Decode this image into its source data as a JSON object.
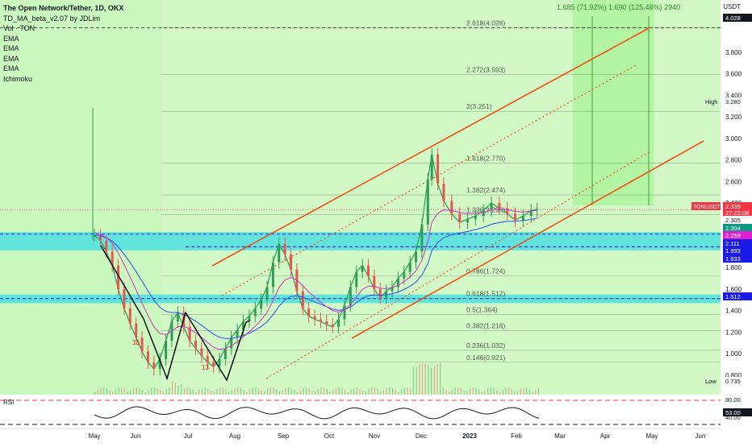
{
  "header": {
    "title": "The Open Network/Tether, 1D, OKX",
    "indicators": [
      "TD_MA_beta_v2.07 by JDLim",
      "Vol · TON",
      "EMA",
      "EMA",
      "EMA",
      "EMA",
      "Ichimoku"
    ],
    "currency": "USDT"
  },
  "colors": {
    "bg_green": "#b9f5a8",
    "candle_up": "#2e9e57",
    "candle_down": "#ef5350",
    "channel": "#f2501a",
    "ema_blue": "#2b50f2",
    "ema_purple": "#d433c8",
    "zone": "#4fe0e0",
    "label_red": "#f23645",
    "label_green": "#089981",
    "label_blue": "#1a1ae6",
    "label_magenta": "#e020d0"
  },
  "chart_data": {
    "type": "line",
    "title": "The Open Network/Tether, 1D, OKX",
    "xlabel": "",
    "ylabel": "USDT",
    "ylim": [
      0.62,
      4.15
    ],
    "x_ticks": [
      "May",
      "Jun",
      "Jul",
      "Aug",
      "Sep",
      "Oct",
      "Nov",
      "Dec",
      "2023",
      "Feb",
      "Mar",
      "Apr",
      "May",
      "Jun"
    ],
    "y_ticks": [
      "4.028",
      "3.800",
      "3.600",
      "3.400",
      "3.200",
      "3.000",
      "2.800",
      "2.600",
      "2.400",
      "2.200",
      "1.800",
      "1.600",
      "1.400",
      "1.200",
      "1.000",
      "0.800"
    ],
    "price_labels": [
      {
        "text": "4.028",
        "kind": "dark"
      },
      {
        "text": "3.280",
        "kind": "white",
        "tag": "High"
      },
      {
        "text": "TONUSDT",
        "kind": "red",
        "tag": ""
      },
      {
        "text": "2.339",
        "kind": "red"
      },
      {
        "text": "27:22:08",
        "kind": "red"
      },
      {
        "text": "2.305",
        "kind": "white"
      },
      {
        "text": "2.304",
        "kind": "green"
      },
      {
        "text": "2.259",
        "kind": "magenta"
      },
      {
        "text": "2.111",
        "kind": "blue"
      },
      {
        "text": "1.993",
        "kind": "blue"
      },
      {
        "text": "1.933",
        "kind": "blue"
      },
      {
        "text": "1.512",
        "kind": "blue"
      },
      {
        "text": "0.735",
        "kind": "white",
        "tag": "Low"
      }
    ],
    "fib_levels": [
      {
        "label": "2.618(4.028)",
        "value": 4.028
      },
      {
        "label": "2.272(3.593)",
        "value": 3.593
      },
      {
        "label": "2(3.251)",
        "value": 3.251
      },
      {
        "label": "1.618(2.770)",
        "value": 2.77
      },
      {
        "label": "1.382(2.474)",
        "value": 2.474
      },
      {
        "label": "1.236(2.290)",
        "value": 2.29
      },
      {
        "label": "0.786(1.724)",
        "value": 1.724
      },
      {
        "label": "0.618(1.512)",
        "value": 1.512
      },
      {
        "label": "0.5(1.364)",
        "value": 1.364
      },
      {
        "label": "0.382(1.216)",
        "value": 1.216
      },
      {
        "label": "0.236(1.032)",
        "value": 1.032
      },
      {
        "label": "0.146(0.921)",
        "value": 0.921
      }
    ],
    "top_annotation": "1.685 (71.92%) 1.690 (125.48%) 2940",
    "rsi": {
      "label": "RSI",
      "ticks": [
        "80.00",
        "53.00",
        "40.00"
      ],
      "value": "53.00"
    },
    "td_counts": [
      "13",
      "13"
    ],
    "series": [
      {
        "values": [
          [
            0,
            2.1
          ],
          [
            3,
            2.05
          ],
          [
            6,
            1.95
          ],
          [
            9,
            1.82
          ],
          [
            12,
            1.6
          ],
          [
            15,
            1.42
          ],
          [
            18,
            1.28
          ],
          [
            21,
            1.15
          ],
          [
            24,
            1.02
          ],
          [
            27,
            0.92
          ],
          [
            30,
            0.86
          ],
          [
            33,
            0.95
          ],
          [
            36,
            1.12
          ],
          [
            39,
            1.3
          ],
          [
            42,
            1.38
          ],
          [
            45,
            1.25
          ],
          [
            48,
            1.12
          ],
          [
            51,
            1.05
          ],
          [
            54,
            0.98
          ],
          [
            57,
            0.92
          ],
          [
            60,
            0.88
          ],
          [
            63,
            0.95
          ],
          [
            66,
            1.05
          ],
          [
            69,
            1.15
          ],
          [
            72,
            1.22
          ],
          [
            75,
            1.3
          ],
          [
            78,
            1.35
          ],
          [
            81,
            1.42
          ],
          [
            84,
            1.5
          ],
          [
            87,
            1.62
          ],
          [
            90,
            1.85
          ],
          [
            93,
            2.02
          ],
          [
            96,
            1.92
          ],
          [
            99,
            1.78
          ],
          [
            102,
            1.58
          ],
          [
            105,
            1.42
          ],
          [
            108,
            1.35
          ],
          [
            111,
            1.32
          ],
          [
            114,
            1.3
          ],
          [
            117,
            1.27
          ],
          [
            120,
            1.25
          ],
          [
            123,
            1.32
          ],
          [
            126,
            1.45
          ],
          [
            129,
            1.62
          ],
          [
            132,
            1.76
          ],
          [
            135,
            1.82
          ],
          [
            138,
            1.72
          ],
          [
            141,
            1.6
          ],
          [
            144,
            1.52
          ],
          [
            147,
            1.58
          ],
          [
            150,
            1.62
          ],
          [
            153,
            1.7
          ],
          [
            156,
            1.76
          ],
          [
            159,
            1.85
          ],
          [
            162,
            1.95
          ],
          [
            165,
            2.2
          ],
          [
            168,
            2.62
          ],
          [
            170,
            2.85
          ],
          [
            173,
            2.58
          ],
          [
            176,
            2.42
          ],
          [
            180,
            2.3
          ],
          [
            184,
            2.22
          ],
          [
            188,
            2.25
          ],
          [
            192,
            2.28
          ],
          [
            196,
            2.33
          ],
          [
            200,
            2.4
          ],
          [
            204,
            2.35
          ],
          [
            208,
            2.3
          ],
          [
            212,
            2.24
          ],
          [
            216,
            2.28
          ],
          [
            220,
            2.33
          ],
          [
            223,
            2.34
          ]
        ]
      }
    ]
  }
}
